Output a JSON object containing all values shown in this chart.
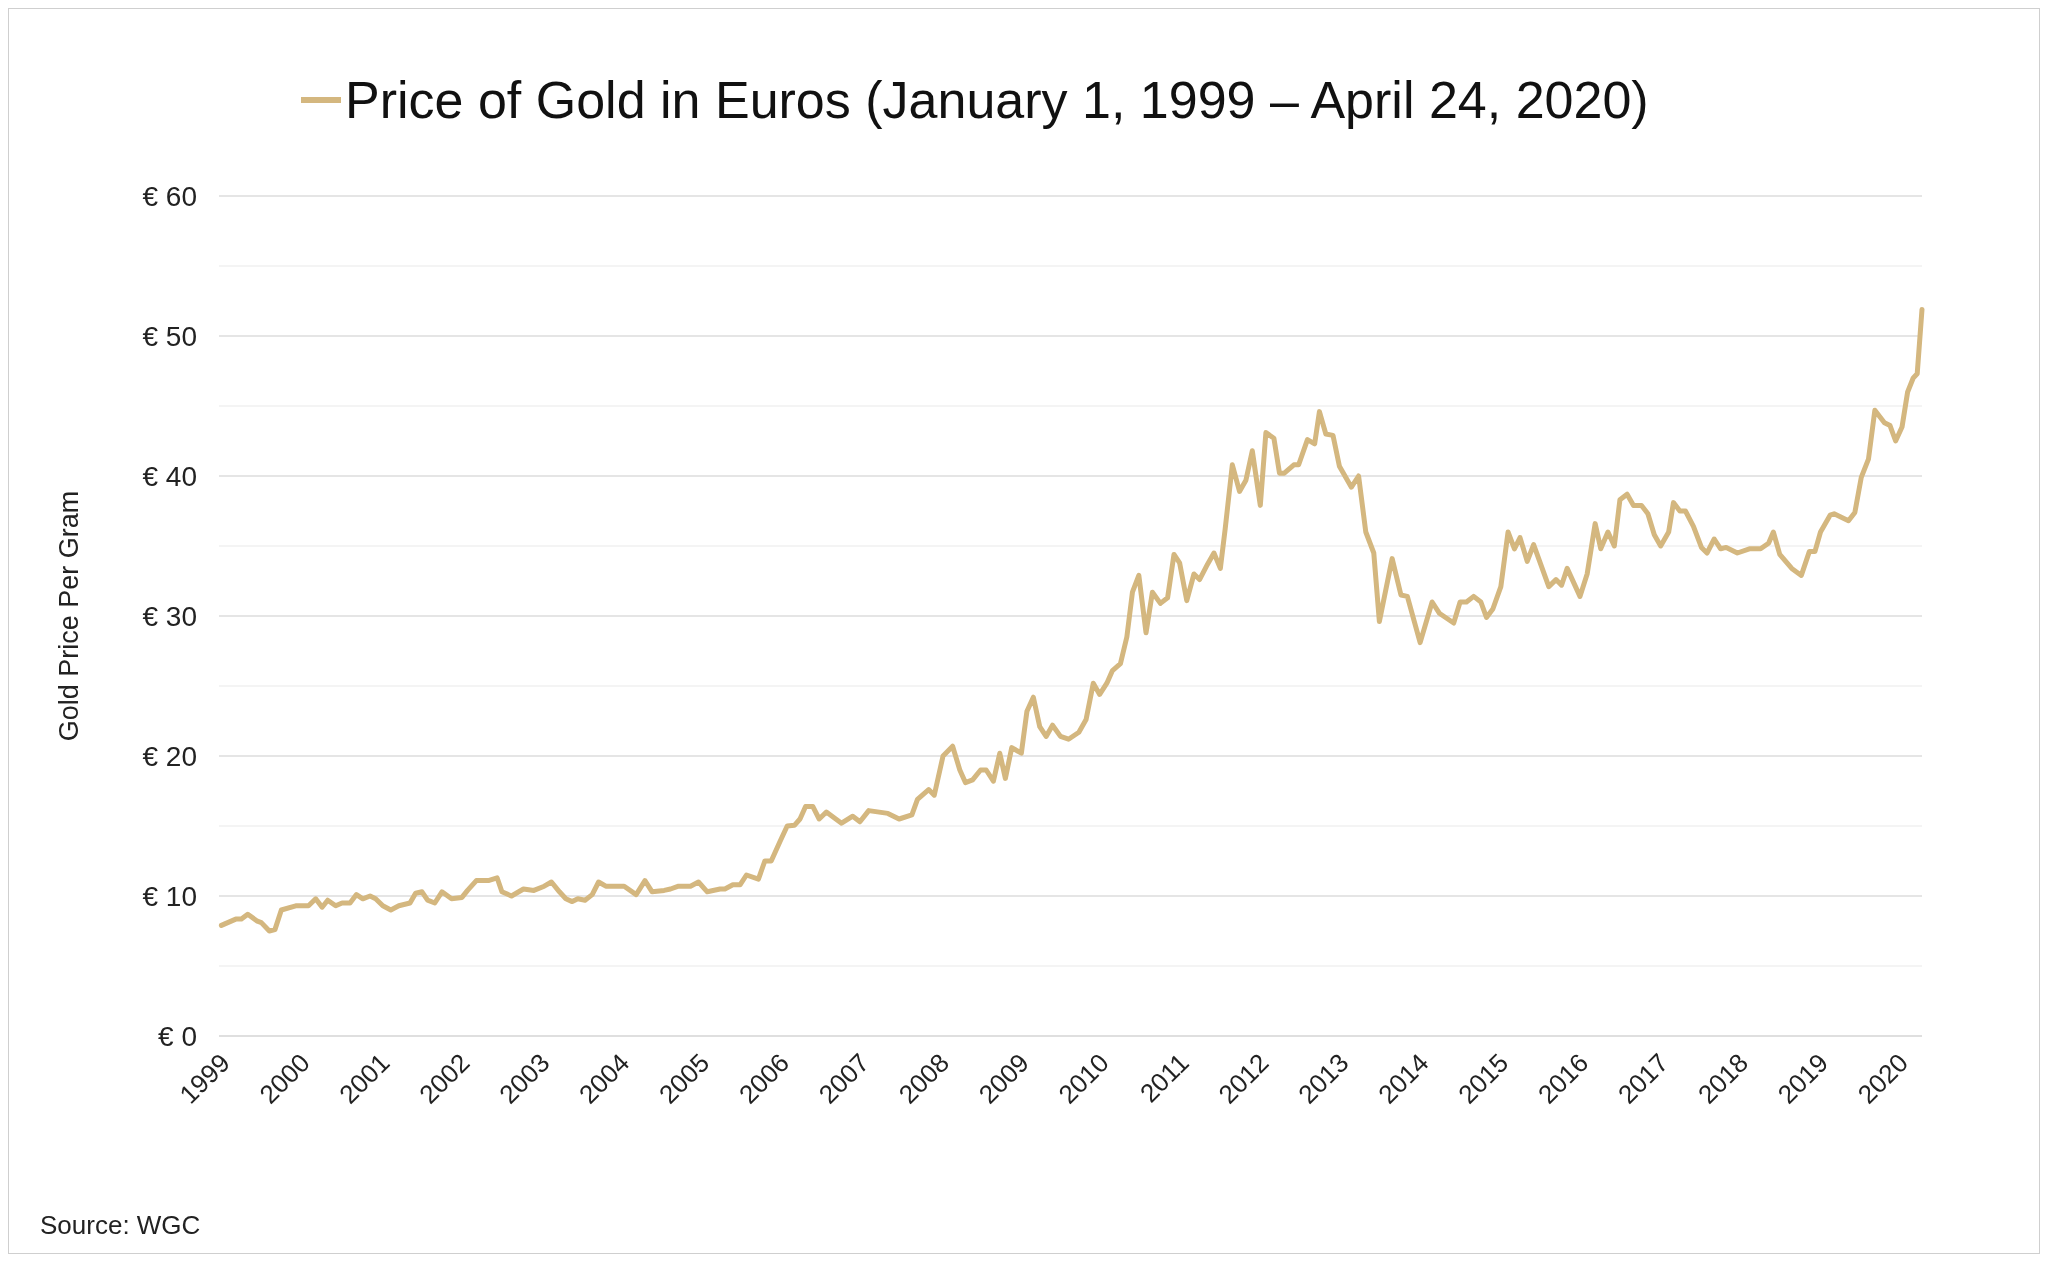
{
  "chart_data": {
    "type": "line",
    "ylabel": "Gold Price Per Gram",
    "legend": "top",
    "grid": "y",
    "annotations": [
      "Source: WGC"
    ],
    "xlim": [
      1999,
      2020.31
    ],
    "xticks": [
      1999,
      2000,
      2001,
      2002,
      2003,
      2004,
      2005,
      2006,
      2007,
      2008,
      2009,
      2010,
      2011,
      2012,
      2013,
      2014,
      2015,
      2016,
      2017,
      2018,
      2019,
      2020
    ],
    "ylim": [
      0,
      60
    ],
    "yticks": [
      {
        "value": 0,
        "label": "€ 0"
      },
      {
        "value": 5,
        "label": null
      },
      {
        "value": 10,
        "label": "€ 10"
      },
      {
        "value": 15,
        "label": null
      },
      {
        "value": 20,
        "label": "€ 20"
      },
      {
        "value": 25,
        "label": null
      },
      {
        "value": 30,
        "label": "€ 30"
      },
      {
        "value": 35,
        "label": null
      },
      {
        "value": 40,
        "label": "€ 40"
      },
      {
        "value": 45,
        "label": null
      },
      {
        "value": 50,
        "label": "€ 50"
      },
      {
        "value": 55,
        "label": null
      },
      {
        "value": 60,
        "label": "€ 60"
      }
    ],
    "series": [
      {
        "name": "Price of Gold in Euros (January 1, 1999 – April 24, 2020)",
        "color": "#d4b77f",
        "x": [
          1999.03,
          1999.21,
          1999.28,
          1999.36,
          1999.48,
          1999.53,
          1999.63,
          1999.7,
          1999.78,
          1999.96,
          2000.12,
          2000.21,
          2000.29,
          2000.36,
          2000.46,
          2000.54,
          2000.64,
          2000.72,
          2000.8,
          2000.89,
          2000.96,
          2001.05,
          2001.15,
          2001.25,
          2001.39,
          2001.46,
          2001.54,
          2001.61,
          2001.7,
          2001.79,
          2001.91,
          2002.04,
          2002.11,
          2002.22,
          2002.37,
          2002.48,
          2002.54,
          2002.66,
          2002.81,
          2002.94,
          2003.07,
          2003.16,
          2003.26,
          2003.34,
          2003.42,
          2003.49,
          2003.58,
          2003.67,
          2003.75,
          2003.84,
          2004.07,
          2004.22,
          2004.33,
          2004.42,
          2004.57,
          2004.65,
          2004.75,
          2004.9,
          2005.0,
          2005.11,
          2005.27,
          2005.33,
          2005.43,
          2005.52,
          2005.6,
          2005.75,
          2005.83,
          2005.91,
          2006.02,
          2006.11,
          2006.2,
          2006.27,
          2006.34,
          2006.43,
          2006.51,
          2006.6,
          2006.79,
          2006.93,
          2007.02,
          2007.13,
          2007.37,
          2007.51,
          2007.67,
          2007.74,
          2007.88,
          2007.95,
          2008.06,
          2008.18,
          2008.27,
          2008.34,
          2008.43,
          2008.53,
          2008.6,
          2008.69,
          2008.77,
          2008.84,
          2008.92,
          2009.04,
          2009.11,
          2009.19,
          2009.27,
          2009.35,
          2009.43,
          2009.53,
          2009.63,
          2009.76,
          2009.85,
          2009.94,
          2010.02,
          2010.11,
          2010.18,
          2010.28,
          2010.36,
          2010.43,
          2010.51,
          2010.6,
          2010.68,
          2010.78,
          2010.87,
          2010.95,
          2011.02,
          2011.11,
          2011.2,
          2011.27,
          2011.37,
          2011.45,
          2011.53,
          2011.59,
          2011.68,
          2011.77,
          2011.85,
          2011.93,
          2012.03,
          2012.1,
          2012.2,
          2012.27,
          2012.33,
          2012.45,
          2012.51,
          2012.62,
          2012.71,
          2012.77,
          2012.85,
          2012.94,
          2013.02,
          2013.17,
          2013.26,
          2013.35,
          2013.45,
          2013.52,
          2013.68,
          2013.79,
          2013.87,
          2014.03,
          2014.18,
          2014.27,
          2014.45,
          2014.53,
          2014.61,
          2014.7,
          2014.79,
          2014.86,
          2014.94,
          2015.04,
          2015.13,
          2015.21,
          2015.28,
          2015.37,
          2015.45,
          2015.64,
          2015.73,
          2015.8,
          2015.87,
          2016.03,
          2016.12,
          2016.22,
          2016.29,
          2016.38,
          2016.46,
          2016.53,
          2016.62,
          2016.7,
          2016.8,
          2016.88,
          2016.96,
          2017.04,
          2017.14,
          2017.2,
          2017.28,
          2017.35,
          2017.45,
          2017.55,
          2017.62,
          2017.71,
          2017.79,
          2017.86,
          2018.0,
          2018.15,
          2018.29,
          2018.39,
          2018.45,
          2018.53,
          2018.68,
          2018.8,
          2018.9,
          2018.97,
          2019.04,
          2019.16,
          2019.21,
          2019.39,
          2019.47,
          2019.55,
          2019.64,
          2019.72,
          2019.84,
          2019.91,
          2019.98,
          2020.06,
          2020.13,
          2020.2,
          2020.25,
          2020.31
        ],
        "values": [
          7.9,
          8.35,
          8.35,
          8.7,
          8.2,
          8.1,
          7.5,
          7.6,
          9.0,
          9.3,
          9.3,
          9.8,
          9.2,
          9.7,
          9.3,
          9.5,
          9.5,
          10.1,
          9.8,
          10.0,
          9.8,
          9.3,
          9.0,
          9.3,
          9.5,
          10.2,
          10.3,
          9.7,
          9.5,
          10.3,
          9.8,
          9.9,
          10.4,
          11.1,
          11.1,
          11.3,
          10.3,
          10.0,
          10.5,
          10.4,
          10.7,
          11.0,
          10.3,
          9.8,
          9.6,
          9.8,
          9.7,
          10.1,
          11.0,
          10.7,
          10.7,
          10.1,
          11.1,
          10.3,
          10.4,
          10.5,
          10.7,
          10.7,
          11.0,
          10.3,
          10.5,
          10.5,
          10.8,
          10.8,
          11.5,
          11.2,
          12.5,
          12.5,
          13.9,
          15.0,
          15.05,
          15.5,
          16.4,
          16.4,
          15.5,
          16.0,
          15.2,
          15.7,
          15.3,
          16.1,
          15.9,
          15.5,
          15.8,
          16.9,
          17.6,
          17.2,
          20.0,
          20.7,
          19.0,
          18.1,
          18.3,
          19.0,
          19.0,
          18.2,
          20.2,
          18.4,
          20.6,
          20.2,
          23.2,
          24.2,
          22.1,
          21.4,
          22.2,
          21.4,
          21.2,
          21.7,
          22.6,
          25.2,
          24.4,
          25.2,
          26.1,
          26.6,
          28.5,
          31.7,
          32.9,
          28.8,
          31.7,
          30.9,
          31.3,
          34.4,
          33.8,
          31.1,
          33.0,
          32.6,
          33.7,
          34.5,
          33.4,
          36.2,
          40.8,
          38.9,
          39.7,
          41.8,
          37.9,
          43.1,
          42.7,
          40.2,
          40.2,
          40.8,
          40.8,
          42.6,
          42.3,
          44.6,
          43.0,
          42.9,
          40.7,
          39.2,
          40.0,
          36.0,
          34.5,
          29.6,
          34.1,
          31.5,
          31.4,
          28.1,
          31.0,
          30.2,
          29.5,
          31.0,
          31.0,
          31.4,
          31.0,
          29.9,
          30.5,
          32.1,
          36.0,
          34.8,
          35.6,
          33.9,
          35.1,
          32.1,
          32.6,
          32.2,
          33.4,
          31.4,
          33.0,
          36.6,
          34.8,
          36.0,
          35.0,
          38.3,
          38.7,
          37.9,
          37.9,
          37.3,
          35.8,
          35.0,
          36.0,
          38.1,
          37.5,
          37.5,
          36.4,
          34.9,
          34.5,
          35.5,
          34.8,
          34.9,
          34.5,
          34.8,
          34.8,
          35.2,
          36.0,
          34.4,
          33.4,
          32.9,
          34.6,
          34.6,
          36.0,
          37.2,
          37.3,
          36.8,
          37.4,
          39.9,
          41.2,
          44.7,
          43.8,
          43.6,
          42.5,
          43.5,
          46.0,
          47.0,
          47.3,
          51.9
        ]
      }
    ]
  }
}
